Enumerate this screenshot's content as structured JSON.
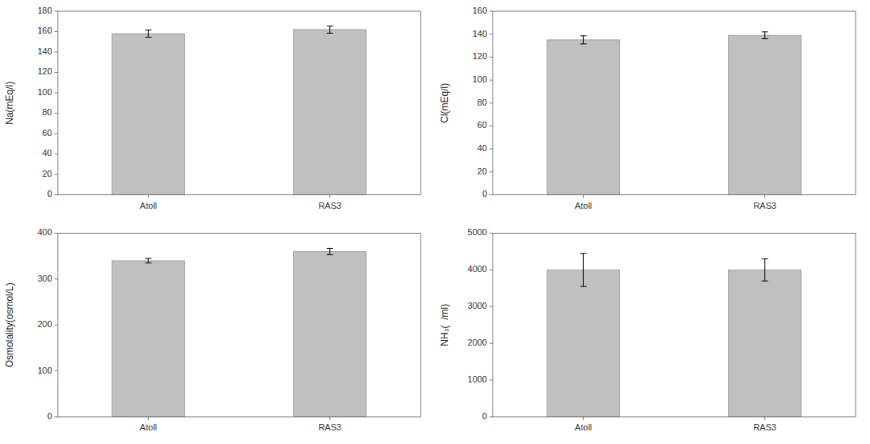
{
  "chart_data": [
    {
      "type": "bar",
      "ylabel": "Na(mEq/l)",
      "categories": [
        "Atoll",
        "RAS3"
      ],
      "values": [
        158,
        162
      ],
      "errors": [
        3.5,
        3.5
      ],
      "color": "#c0c0c0",
      "ylim": [
        0,
        180
      ],
      "yticks": [
        0,
        20,
        40,
        60,
        80,
        100,
        120,
        140,
        160,
        180
      ],
      "grid": false
    },
    {
      "type": "bar",
      "ylabel": "Cl(mEq/l)",
      "categories": [
        "Atoll",
        "RAS3"
      ],
      "values": [
        135,
        139
      ],
      "errors": [
        3.5,
        3.0
      ],
      "color": "#c0c0c0",
      "ylim": [
        0,
        160
      ],
      "yticks": [
        0,
        20,
        40,
        60,
        80,
        100,
        120,
        140,
        160
      ],
      "grid": false
    },
    {
      "type": "bar",
      "ylabel": "Osmolality(osmol/L)",
      "categories": [
        "Atoll",
        "RAS3"
      ],
      "values": [
        340,
        360
      ],
      "errors": [
        5,
        7
      ],
      "color": "#c0c0c0",
      "ylim": [
        0,
        400
      ],
      "yticks": [
        0,
        100,
        200,
        300,
        400
      ],
      "grid": false
    },
    {
      "type": "bar",
      "ylabel": "NH₃(  /ml)",
      "categories": [
        "Atoll",
        "RAS3"
      ],
      "values": [
        4000,
        4000
      ],
      "errors": [
        450,
        300
      ],
      "color": "#c0c0c0",
      "ylim": [
        0,
        5000
      ],
      "yticks": [
        0,
        1000,
        2000,
        3000,
        4000,
        5000
      ],
      "grid": false
    }
  ]
}
